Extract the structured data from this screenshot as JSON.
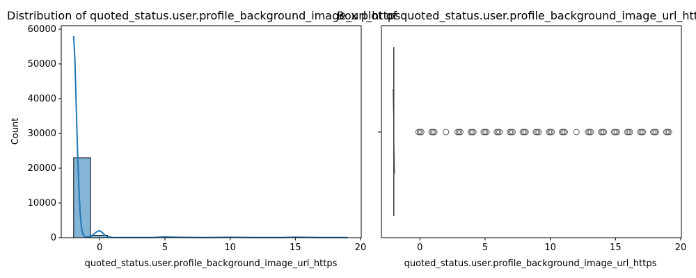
{
  "chart_data": [
    {
      "type": "bar",
      "title": "Distribution of quoted_status.user.profile_background_image_url_https",
      "xlabel": "quoted_status.user.profile_background_image_url_https",
      "ylabel": "Count",
      "xlim": [
        -2.95,
        20.05
      ],
      "ylim": [
        0,
        61000
      ],
      "xticks": [
        0,
        5,
        10,
        15,
        20
      ],
      "yticks": [
        0,
        10000,
        20000,
        30000,
        40000,
        50000,
        60000
      ],
      "bar_color": "#1f77b4",
      "bins": [
        {
          "x0": -2.0,
          "x1": -0.7,
          "count": 23000
        },
        {
          "x0": -0.7,
          "x1": 0.6,
          "count": 700
        },
        {
          "x0": 0.6,
          "x1": 1.9,
          "count": 40
        },
        {
          "x0": 1.9,
          "x1": 3.2,
          "count": 20
        },
        {
          "x0": 3.2,
          "x1": 4.5,
          "count": 30
        },
        {
          "x0": 4.5,
          "x1": 5.8,
          "count": 60
        },
        {
          "x0": 5.8,
          "x1": 7.1,
          "count": 40
        },
        {
          "x0": 7.1,
          "x1": 8.4,
          "count": 30
        },
        {
          "x0": 8.4,
          "x1": 9.7,
          "count": 20
        },
        {
          "x0": 9.7,
          "x1": 11.0,
          "count": 40
        },
        {
          "x0": 11.0,
          "x1": 12.3,
          "count": 20
        },
        {
          "x0": 12.3,
          "x1": 13.6,
          "count": 30
        },
        {
          "x0": 13.6,
          "x1": 14.9,
          "count": 40
        },
        {
          "x0": 14.9,
          "x1": 16.2,
          "count": 30
        },
        {
          "x0": 16.2,
          "x1": 17.5,
          "count": 20
        },
        {
          "x0": 17.5,
          "x1": 19.0,
          "count": 30
        }
      ],
      "kde": {
        "x": [
          -2.0,
          -1.9,
          -1.8,
          -1.7,
          -1.6,
          -1.5,
          -1.4,
          -1.3,
          -1.2,
          -1.1,
          -1.0,
          -0.8,
          -0.6,
          -0.4,
          -0.2,
          0.0,
          0.2,
          0.4,
          0.6,
          1.0,
          2.0,
          4.0,
          5.0,
          6.0,
          8.0,
          10.0,
          12.0,
          14.0,
          15.0,
          17.0,
          19.0
        ],
        "y": [
          58000,
          51000,
          38000,
          25000,
          14500,
          7000,
          3000,
          1200,
          500,
          250,
          200,
          250,
          600,
          1200,
          1800,
          2000,
          1500,
          700,
          250,
          80,
          50,
          60,
          220,
          120,
          60,
          120,
          50,
          60,
          140,
          50,
          40
        ]
      }
    },
    {
      "type": "box",
      "title": "Box plot of quoted_status.user.profile_background_image_url_https",
      "xlabel": "quoted_status.user.profile_background_image_url_https",
      "xlim": [
        -2.95,
        20.05
      ],
      "xticks": [
        0,
        5,
        10,
        15,
        20
      ],
      "box": {
        "min": -2,
        "q1": -2,
        "median": -2,
        "q3": -2,
        "max": -2
      },
      "outliers": [
        0,
        1,
        2,
        3,
        4,
        5,
        6,
        7,
        8,
        9,
        10,
        11,
        12,
        13,
        14,
        15,
        16,
        17,
        18,
        19
      ],
      "outlier_color": "#555555"
    }
  ]
}
